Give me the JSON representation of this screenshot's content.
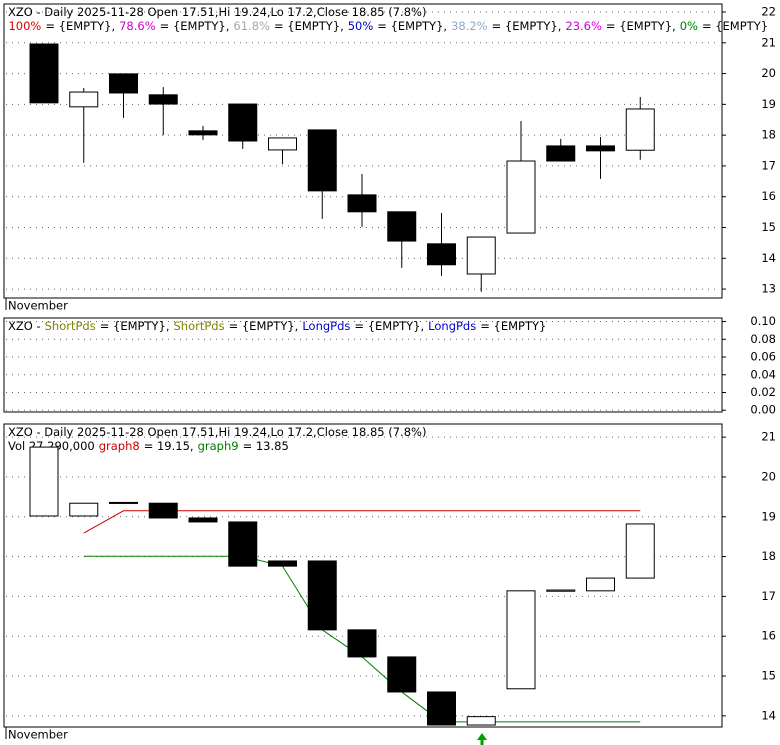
{
  "chart_data": [
    {
      "type": "candlestick",
      "title": "XZO - Daily 2025-11-28 Open 17.51,Hi 19.24,Lo 17.2,Close 18.85 (7.8%)",
      "legend": [
        {
          "name": "100%",
          "color": "#e00000",
          "text": "= {EMPTY},"
        },
        {
          "name": "78.6%",
          "color": "#d000d0",
          "text": "= {EMPTY},"
        },
        {
          "name": "61.8%",
          "color": "#a0a8b0",
          "text": "= {EMPTY},"
        },
        {
          "name": "50%",
          "color": "#0000d0",
          "text": "= {EMPTY},"
        },
        {
          "name": "38.2%",
          "color": "#90a8c8",
          "text": "= {EMPTY},"
        },
        {
          "name": "23.6%",
          "color": "#d000d0",
          "text": "= {EMPTY},"
        },
        {
          "name": "0%",
          "color": "#008000",
          "text": "= {EMPTY}"
        }
      ],
      "x_label": "November",
      "open": [
        20.96,
        18.92,
        19.99,
        19.31,
        18.14,
        19.01,
        17.52,
        18.17,
        16.06,
        15.51,
        14.47,
        13.49,
        14.82,
        17.65,
        17.65,
        17.51
      ],
      "high": [
        20.96,
        19.53,
        19.99,
        19.56,
        18.3,
        19.01,
        17.91,
        18.17,
        16.74,
        15.51,
        15.47,
        14.69,
        18.46,
        17.88,
        17.94,
        19.24
      ],
      "low": [
        19.05,
        17.1,
        18.56,
        18.0,
        17.84,
        17.55,
        17.06,
        15.28,
        15.02,
        13.69,
        13.43,
        12.91,
        14.82,
        17.16,
        16.58,
        17.2
      ],
      "close": [
        19.05,
        19.4,
        19.37,
        19.01,
        18.01,
        17.81,
        17.91,
        16.19,
        15.51,
        14.56,
        13.79,
        14.69,
        17.16,
        17.16,
        17.49,
        18.85
      ],
      "ylim": [
        12.71,
        22.26
      ],
      "yticks": [
        13,
        14,
        15,
        16,
        17,
        18,
        19,
        20,
        21,
        22
      ],
      "grid": true
    },
    {
      "type": "empty",
      "title": "XZO -",
      "legend": [
        {
          "name": "ShortPds",
          "color": "#808000",
          "text": "= {EMPTY},"
        },
        {
          "name": "ShortPds",
          "color": "#808000",
          "text": "= {EMPTY},"
        },
        {
          "name": "LongPds",
          "color": "#0000d0",
          "text": "= {EMPTY},"
        },
        {
          "name": "LongPds",
          "color": "#0000d0",
          "text": "= {EMPTY}"
        }
      ],
      "ylim": [
        -0.002,
        0.104
      ],
      "yticks": [
        {
          "value": 0,
          "label": "0.00"
        },
        0.02,
        0.04,
        0.06,
        0.08,
        {
          "value": 0.1,
          "label": "0.10"
        }
      ],
      "grid": true
    },
    {
      "type": "candlestick",
      "title": "XZO - Daily 2025-11-28 Open 17.51,Hi 19.24,Lo 17.2,Close 18.85 (7.8%)",
      "subtitle": "Vol 27,290,000",
      "x_label": "November",
      "open": [
        19.02,
        19.02,
        19.34,
        19.34,
        18.97,
        18.87,
        17.89,
        17.89,
        16.16,
        15.48,
        14.6,
        13.77,
        14.68,
        17.13,
        17.14,
        17.46
      ],
      "close": [
        20.75,
        19.34,
        19.36,
        18.97,
        18.87,
        17.76,
        17.76,
        16.16,
        15.48,
        14.6,
        13.77,
        13.98,
        17.14,
        17.16,
        17.46,
        18.82
      ],
      "series": [
        {
          "name": "graph8",
          "color": "#d00000",
          "text": "= 19.15,",
          "values": [
            null,
            18.59,
            19.15,
            19.15,
            19.15,
            19.15,
            19.15,
            19.15,
            19.15,
            19.15,
            19.15,
            19.15,
            19.15,
            19.15,
            19.15,
            19.15
          ]
        },
        {
          "name": "graph9",
          "color": "#008000",
          "text": "= 13.85",
          "values": [
            null,
            18.01,
            18.01,
            18.01,
            18.01,
            18.01,
            17.76,
            16.16,
            15.48,
            14.6,
            13.85,
            13.85,
            13.85,
            13.85,
            13.85,
            13.85
          ]
        }
      ],
      "ylim": [
        13.72,
        21.33
      ],
      "yticks": [
        14,
        15,
        16,
        17,
        18,
        19,
        20,
        21
      ],
      "grid": true
    }
  ]
}
